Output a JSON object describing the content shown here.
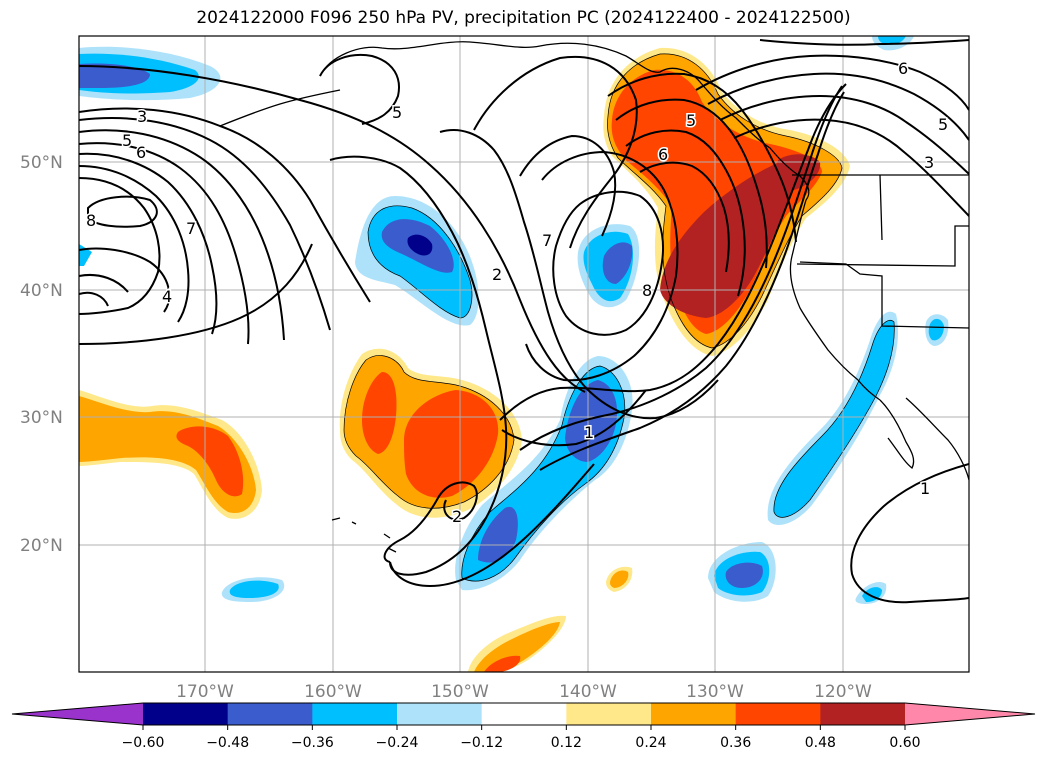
{
  "title": "2024122000 F096 250 hPa PV, precipitation PC (2024122400 - 2024122500)",
  "lat_labels": [
    "50°N",
    "40°N",
    "30°N",
    "20°N"
  ],
  "lon_labels": [
    "170°W",
    "160°W",
    "150°W",
    "140°W",
    "130°W",
    "120°W"
  ],
  "colorbar": {
    "ticks": [
      "−0.60",
      "−0.48",
      "−0.36",
      "−0.24",
      "−0.12",
      "0.12",
      "0.24",
      "0.36",
      "0.48",
      "0.60"
    ],
    "colors": [
      "#9933cc",
      "#00008b",
      "#3a5ccc",
      "#00bfff",
      "#aee2fa",
      "#ffffff",
      "#ffe88a",
      "#ffa500",
      "#ff4500",
      "#b22222",
      "#ff88aa"
    ]
  },
  "contour_labels": [
    "3",
    "5",
    "6",
    "5",
    "8",
    "7",
    "4",
    "5",
    "2",
    "7",
    "8",
    "6",
    "6",
    "5",
    "3",
    "1",
    "2",
    "1"
  ],
  "colors": {
    "background": "#ffffff",
    "grid": "#b0b0b0",
    "contour": "#000000",
    "coast": "#000000"
  }
}
